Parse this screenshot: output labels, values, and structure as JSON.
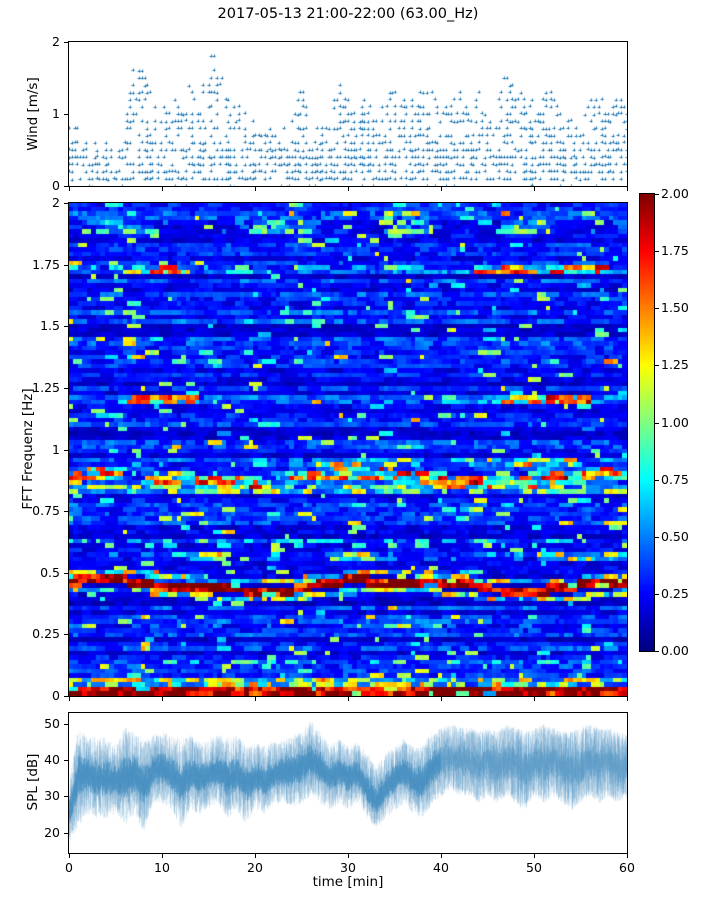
{
  "title": "2017-05-13 21:00-22:00 (63.00_Hz)",
  "colors": {
    "marker": "#1f77b4",
    "spl_line": "#1f77b4",
    "spine": "#000000",
    "background": "#ffffff"
  },
  "chart_data": [
    {
      "type": "scatter",
      "name": "wind",
      "ylabel": "Wind [m/s]",
      "xlim": [
        0,
        60
      ],
      "ylim": [
        0,
        2
      ],
      "yticks": [
        0,
        1,
        2
      ],
      "ytick_labels": [
        "0",
        "1",
        "2"
      ],
      "xticks": [
        0,
        10,
        20,
        30,
        40,
        50,
        60
      ],
      "marker": "plus",
      "color": "#1f77b4",
      "quantization_mps": 0.1,
      "minute_max": [
        0.8,
        0.8,
        0.7,
        0.6,
        0.7,
        0.6,
        0.7,
        1.7,
        1.6,
        1.2,
        1.1,
        1.4,
        1.0,
        1.45,
        1.1,
        2.0,
        1.75,
        1.25,
        1.25,
        1.0,
        0.9,
        0.85,
        0.9,
        0.8,
        0.9,
        1.4,
        0.9,
        0.8,
        0.9,
        1.5,
        1.2,
        0.9,
        1.3,
        1.0,
        1.25,
        1.35,
        1.3,
        1.25,
        1.35,
        1.3,
        1.0,
        1.25,
        1.3,
        1.1,
        1.35,
        1.0,
        1.1,
        1.6,
        1.35,
        1.3,
        1.2,
        1.35,
        1.3,
        1.0,
        0.9,
        0.8,
        1.25,
        1.3,
        1.0,
        1.3,
        1.1
      ],
      "seed": 7
    },
    {
      "type": "heatmap",
      "name": "fft-spectrogram",
      "ylabel": "FFT Frequenz [Hz]",
      "xlim": [
        0,
        60
      ],
      "ylim": [
        0,
        2
      ],
      "yticks": [
        0,
        0.25,
        0.5,
        0.75,
        1,
        1.25,
        1.5,
        1.75,
        2
      ],
      "ytick_labels": [
        "0",
        "0.25",
        "0.5",
        "0.75",
        "1",
        "1.25",
        "1.5",
        "1.75",
        "2"
      ],
      "xticks": [
        0,
        10,
        20,
        30,
        40,
        50,
        60
      ],
      "colormap": "jet",
      "clim": [
        0,
        2
      ],
      "colorbar_ticks": [
        0,
        0.25,
        0.5,
        0.75,
        1,
        1.25,
        1.5,
        1.75,
        2
      ],
      "colorbar_tick_labels": [
        "0.00",
        "0.25",
        "0.50",
        "0.75",
        "1.00",
        "1.25",
        "1.50",
        "1.75",
        "2.00"
      ],
      "grid_cols": 124,
      "grid_rows": 110,
      "background_noise": {
        "base_min": 0.13,
        "base_max": 0.4,
        "speckle_prob": 0.07
      },
      "bands": [
        {
          "f": 0.02,
          "df": 0.022,
          "amp": 1.95,
          "duty": 0.9
        },
        {
          "f": 0.055,
          "df": 0.012,
          "amp": 1.25,
          "duty": 0.5
        },
        {
          "f": 0.445,
          "df": 0.018,
          "amp": 2.0,
          "duty": 0.97,
          "wave": [
            [
              0.02,
              30,
              0.6
            ],
            [
              0.01,
              13,
              0
            ]
          ]
        },
        {
          "f": 0.478,
          "df": 0.012,
          "amp": 1.35,
          "duty": 0.45,
          "wave": [
            [
              0.02,
              30,
              0.6
            ]
          ]
        },
        {
          "f": 0.408,
          "df": 0.012,
          "amp": 1.25,
          "duty": 0.4,
          "wave": [
            [
              0.02,
              30,
              0.6
            ]
          ]
        },
        {
          "f": 0.88,
          "df": 0.028,
          "amp": 1.6,
          "duty": 0.5,
          "wave": [
            [
              0.015,
              27,
              0.5
            ]
          ],
          "on": [
            [
              0,
              6
            ],
            [
              8,
              21
            ],
            [
              23,
              60
            ]
          ]
        },
        {
          "f": 0.84,
          "df": 0.014,
          "amp": 1.15,
          "duty": 0.35
        },
        {
          "f": 0.95,
          "df": 0.02,
          "amp": 1.3,
          "duty": 0.35,
          "on": [
            [
              26,
              38
            ],
            [
              44,
              55
            ]
          ]
        },
        {
          "f": 1.2,
          "df": 0.02,
          "amp": 1.6,
          "duty": 0.45,
          "on": [
            [
              6.5,
              13.5
            ],
            [
              46,
              56
            ]
          ]
        },
        {
          "f": 1.73,
          "df": 0.024,
          "amp": 1.55,
          "duty": 0.45,
          "on": [
            [
              7,
              13
            ],
            [
              44,
              58
            ]
          ]
        },
        {
          "f": 1.9,
          "df": 0.02,
          "amp": 1.0,
          "duty": 0.35,
          "on": [
            [
              3,
              8
            ],
            [
              20,
              26
            ],
            [
              34,
              39
            ],
            [
              46,
              52
            ]
          ]
        },
        {
          "f": 0.56,
          "df": 0.014,
          "amp": 1.25,
          "duty": 0.35,
          "on": [
            [
              12,
              17
            ],
            [
              28,
              33
            ],
            [
              50,
              60
            ]
          ]
        },
        {
          "f": 0.28,
          "df": 0.014,
          "amp": 1.05,
          "duty": 0.3,
          "on": [
            [
              8,
              16
            ],
            [
              30,
              40
            ]
          ]
        },
        {
          "f": 0.14,
          "df": 0.013,
          "amp": 0.85,
          "duty": 0.3
        },
        {
          "f": 0.63,
          "df": 0.013,
          "amp": 0.8,
          "duty": 0.3
        }
      ],
      "seed": 42
    },
    {
      "type": "line",
      "name": "spl",
      "ylabel": "SPL [dB]",
      "xlabel": "time [min]",
      "xlim": [
        0,
        60
      ],
      "ylim": [
        14.4,
        53
      ],
      "yticks": [
        20,
        30,
        40,
        50
      ],
      "ytick_labels": [
        "20",
        "30",
        "40",
        "50"
      ],
      "xticks": [
        0,
        10,
        20,
        30,
        40,
        50,
        60
      ],
      "xtick_labels": [
        "0",
        "10",
        "20",
        "30",
        "40",
        "50",
        "60"
      ],
      "color": "#1f77b4",
      "minute_min": [
        17,
        22,
        25,
        24,
        24,
        25,
        22,
        25,
        20,
        28,
        28,
        26,
        21,
        26,
        25,
        27,
        28,
        24,
        26,
        22,
        26,
        25,
        28,
        28,
        27,
        28,
        30,
        28,
        26,
        28,
        26,
        28,
        24,
        21,
        24,
        26,
        28,
        25,
        24,
        28,
        30,
        32,
        30,
        30,
        28,
        30,
        28,
        30,
        28,
        26,
        30,
        28,
        30,
        28,
        26,
        28,
        30,
        28,
        30,
        28,
        30
      ],
      "minute_max": [
        35,
        49,
        46,
        47,
        46,
        44,
        49,
        48,
        46,
        47,
        48,
        47,
        46,
        47,
        45,
        46,
        47,
        46,
        47,
        44,
        45,
        44,
        45,
        46,
        47,
        48,
        51,
        48,
        44,
        46,
        44,
        45,
        42,
        38,
        42,
        44,
        46,
        44,
        44,
        48,
        49,
        50,
        49,
        49,
        48,
        49,
        48,
        50,
        49,
        48,
        49,
        50,
        49,
        48,
        48,
        49,
        50,
        49,
        49,
        48,
        47
      ],
      "minute_mean": [
        26,
        36,
        36,
        35,
        35,
        34,
        35,
        36,
        33,
        37,
        38,
        36,
        33,
        36,
        35,
        36,
        37,
        35,
        36,
        33,
        35,
        34,
        36,
        37,
        37,
        38,
        40,
        38,
        35,
        37,
        35,
        36,
        32,
        28,
        32,
        35,
        37,
        34,
        34,
        38,
        40,
        41,
        40,
        40,
        38,
        40,
        38,
        40,
        39,
        37,
        40,
        39,
        40,
        38,
        37,
        38,
        40,
        39,
        40,
        38,
        38
      ],
      "lighter_after_min": 40,
      "seed": 99
    }
  ]
}
